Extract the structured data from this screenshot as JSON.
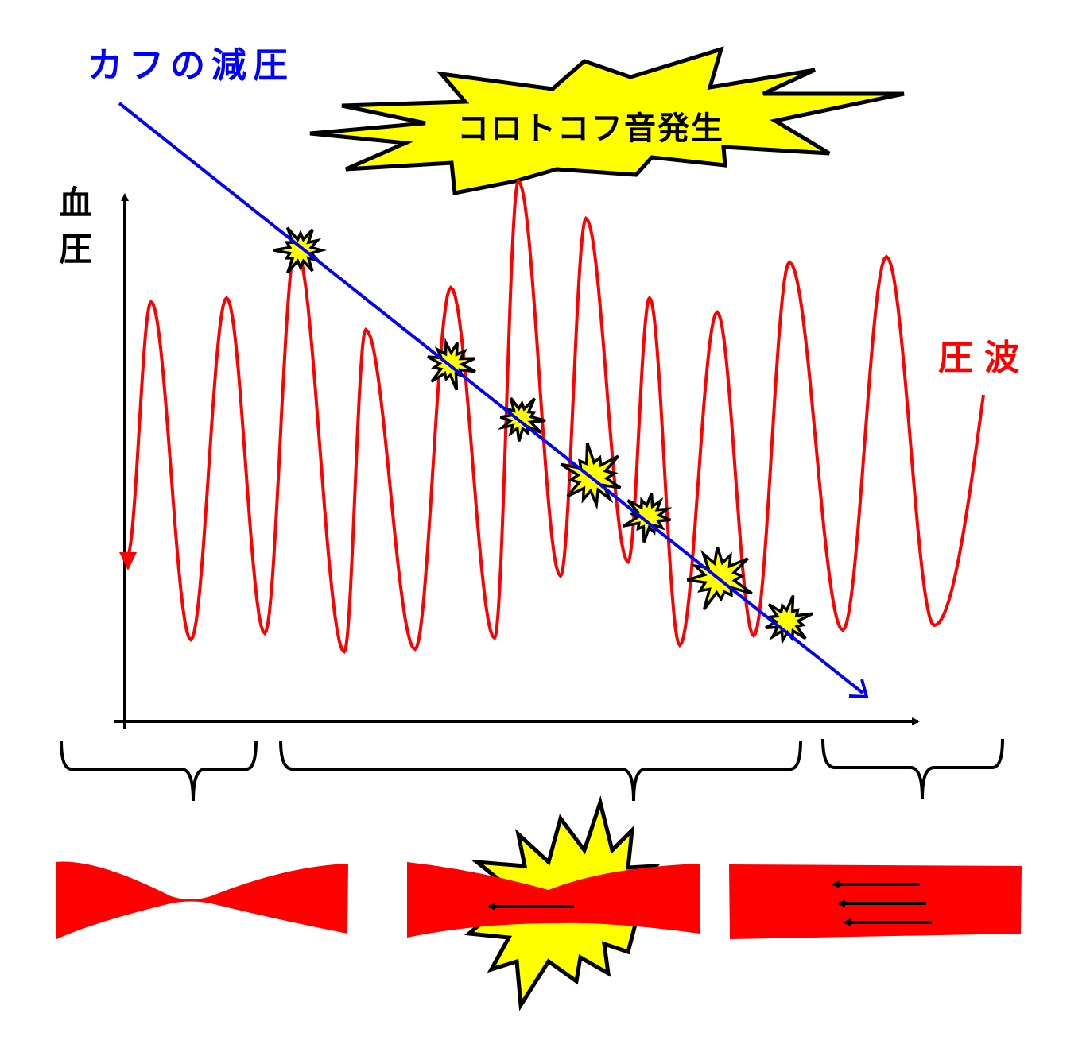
{
  "labels": {
    "cuff_deflation": "カフの減圧",
    "korotkoff_onset": "コロトコフ音発生",
    "blood_pressure_axis": "血圧",
    "pressure_wave": "圧波"
  },
  "colors": {
    "cuff_line": "#0000ff",
    "pressure_wave": "#ff0000",
    "burst_fill": "#ffff00",
    "outline": "#000000"
  }
}
